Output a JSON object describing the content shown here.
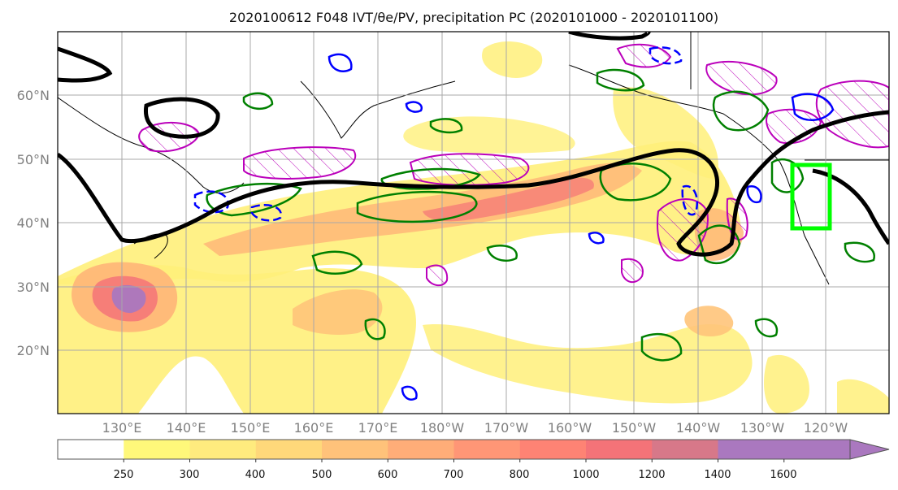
{
  "title": "2020100612 F048 IVT/θe/PV, precipitation PC (2020101000 - 2020101100)",
  "lat_labels": [
    "60°N",
    "50°N",
    "40°N",
    "30°N",
    "20°N"
  ],
  "lon_labels": [
    "130°E",
    "140°E",
    "150°E",
    "160°E",
    "170°E",
    "180°W",
    "170°W",
    "160°W",
    "150°W",
    "140°W",
    "130°W",
    "120°W"
  ],
  "colorbar": {
    "ticks": [
      "250",
      "300",
      "400",
      "500",
      "600",
      "700",
      "800",
      "1000",
      "1200",
      "1400",
      "1600"
    ],
    "colors": [
      "#ffffff",
      "#fff87a",
      "#ffeb7e",
      "#ffd87a",
      "#ffc27a",
      "#ffad78",
      "#ff9676",
      "#fe8374",
      "#f47378",
      "#d77889",
      "#aa78bf"
    ]
  },
  "colors": {
    "ivt_low": "#fff07a",
    "ivt_mid": "#ffb778",
    "ivt_high": "#f57878",
    "ivt_max": "#aa78bf",
    "theta_e_contour": "#000000",
    "precip_pc_positive": "#008000",
    "precip_pc_negative": "#0000ff",
    "pv_contour": "#bb00bb",
    "target_box": "#00ff00",
    "coastline": "#000000",
    "grid": "#a8a8a8"
  }
}
